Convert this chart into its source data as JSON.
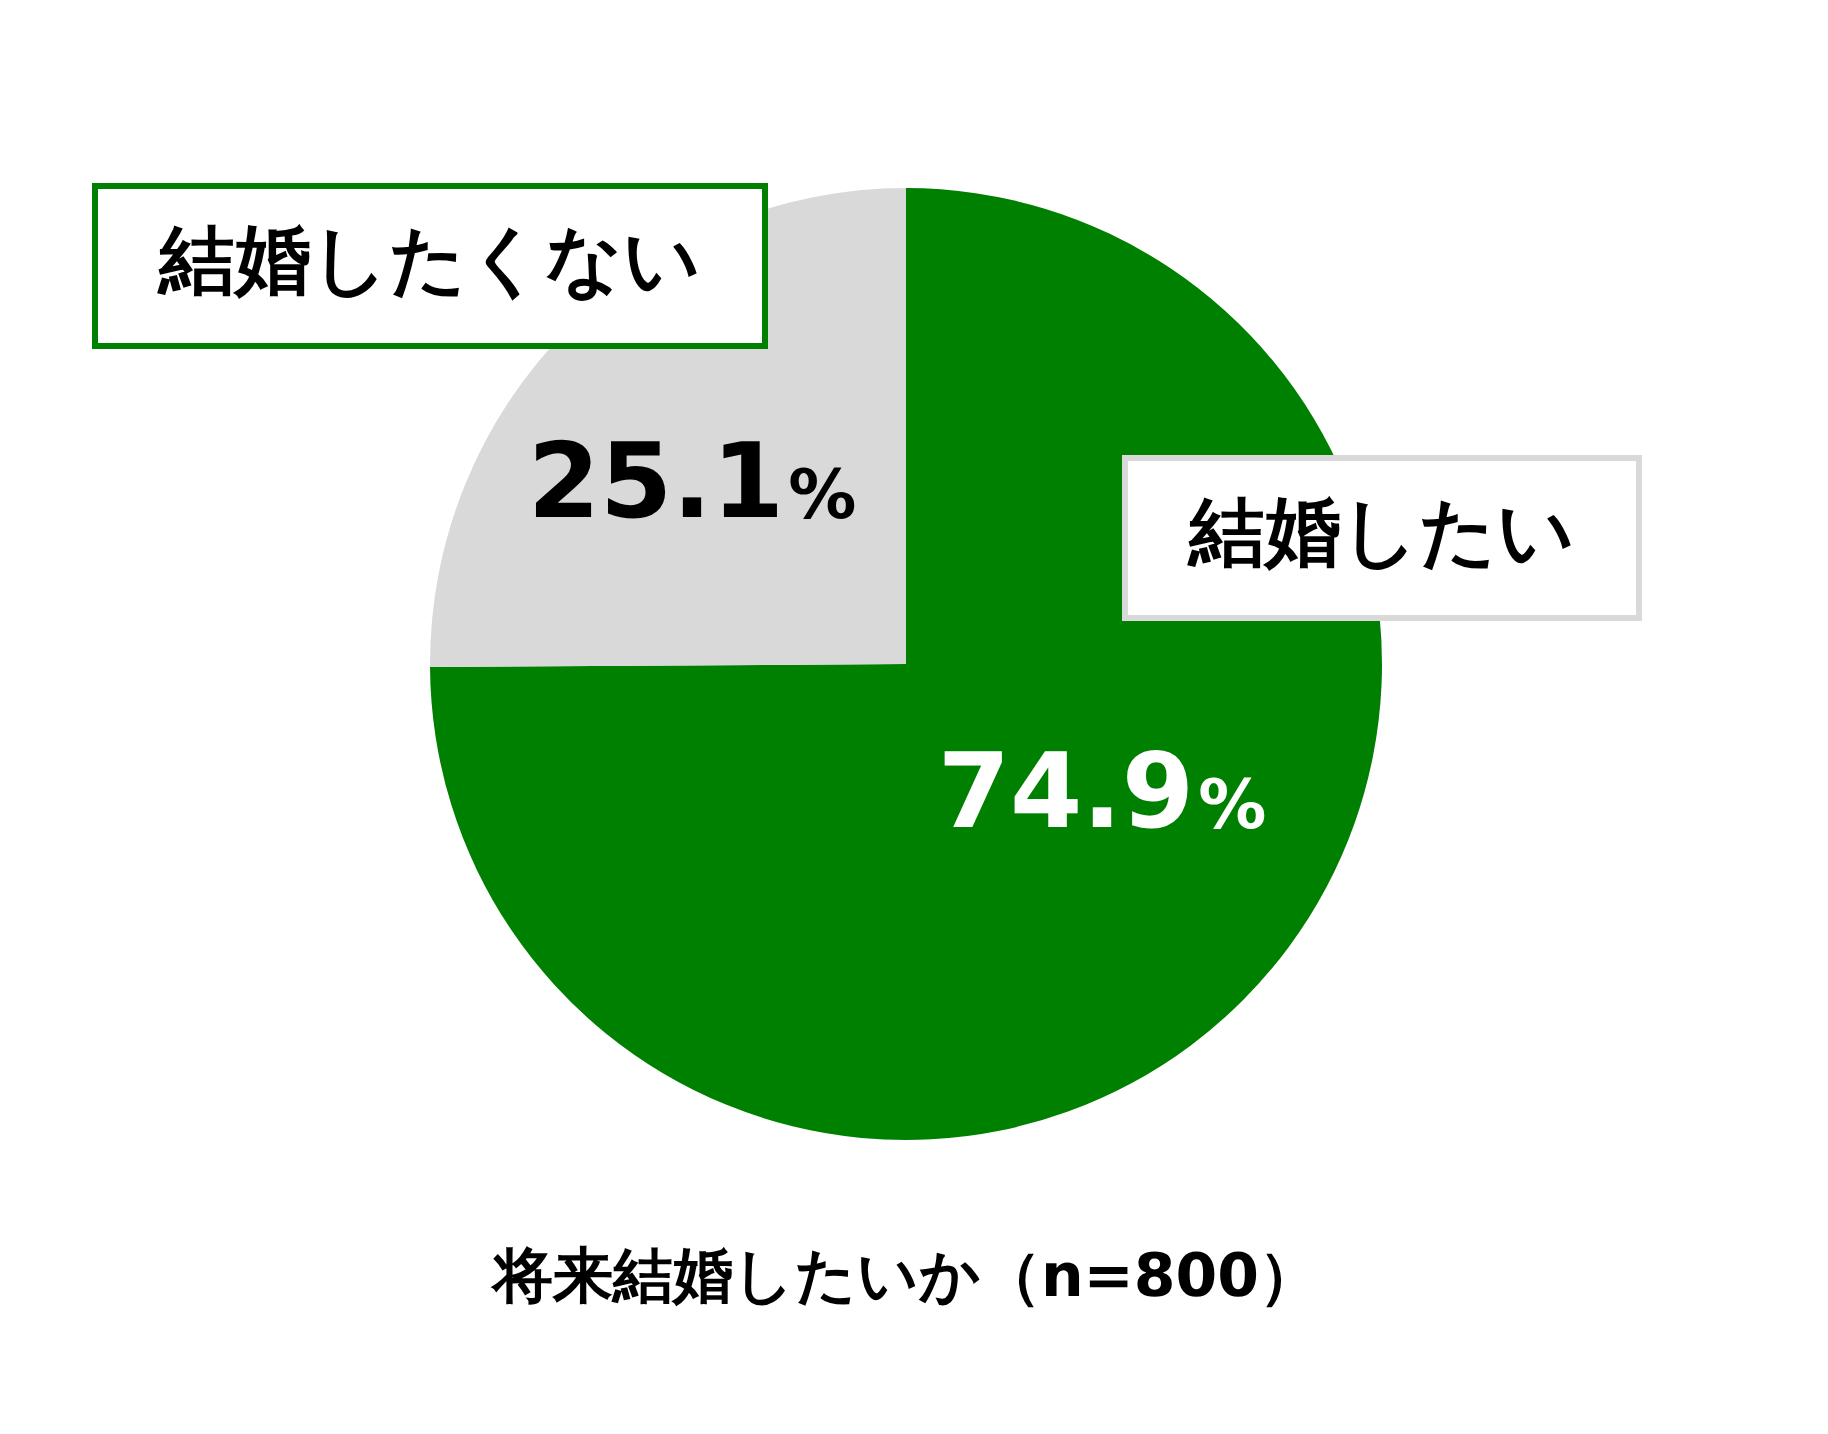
{
  "chart_data": {
    "type": "pie",
    "title": "将来結婚したいか（n=800）",
    "categories": [
      "結婚したい",
      "結婚したくない"
    ],
    "values": [
      74.9,
      25.1
    ],
    "colors": [
      "#008000",
      "#d9d9d9"
    ],
    "value_labels": [
      "74.9%",
      "25.1%"
    ],
    "legend": false
  }
}
